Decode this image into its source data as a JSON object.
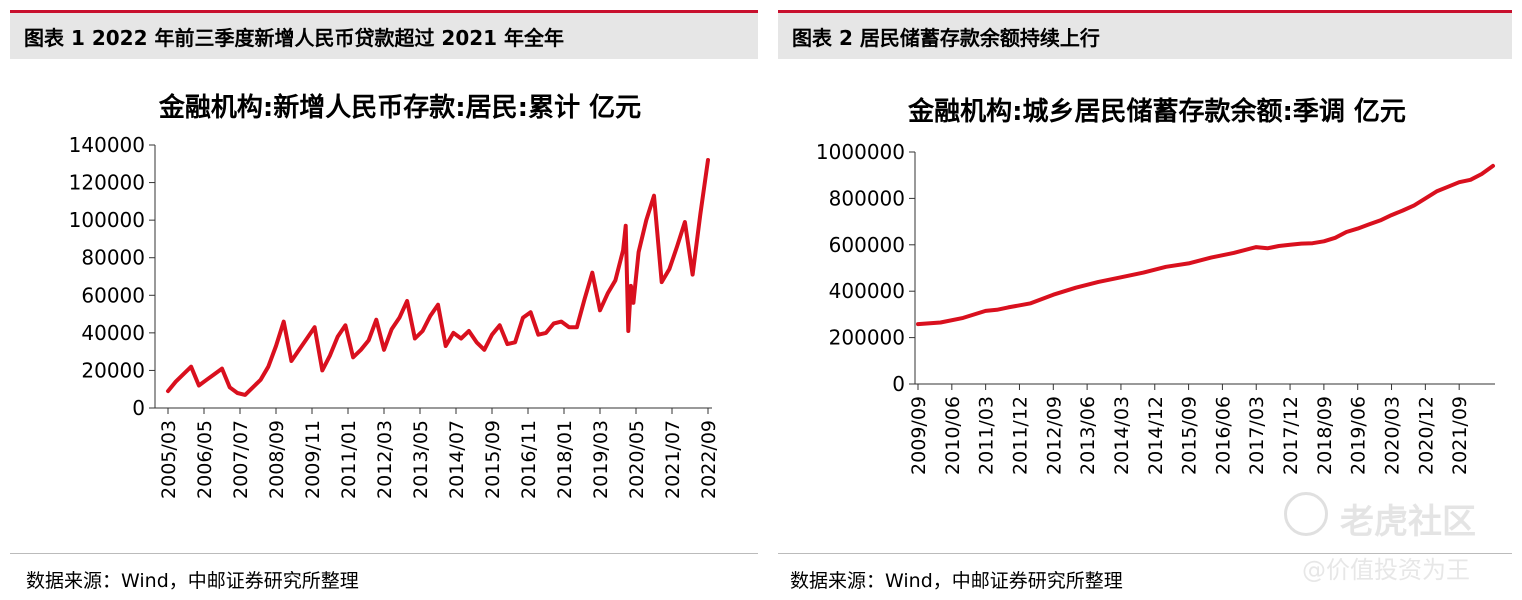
{
  "panels": [
    {
      "header": "图表 1 2022 年前三季度新增人民币贷款超过 2021 年全年",
      "source": "数据来源：Wind，中邮证券研究所整理"
    },
    {
      "header": "图表 2 居民储蓄存款余额持续上行",
      "source": "数据来源：Wind，中邮证券研究所整理"
    }
  ],
  "watermark": {
    "name": "老虎社区",
    "slogan": "@价值投资为王",
    "icon": "tiger-community-logo-icon"
  },
  "colors": {
    "series": "#d9101e",
    "accent": "#c8102e",
    "header_bg": "#e6e6e6"
  },
  "chart_data": [
    {
      "type": "line",
      "title": "金融机构:新增人民币存款:居民:累计 亿元",
      "ylim": [
        0,
        140000
      ],
      "yticks": [
        "0",
        "20000",
        "40000",
        "60000",
        "80000",
        "100000",
        "120000",
        "140000"
      ],
      "xticks": [
        "2005/03",
        "2006/05",
        "2007/07",
        "2008/09",
        "2009/11",
        "2011/01",
        "2012/03",
        "2013/05",
        "2014/07",
        "2015/09",
        "2016/11",
        "2018/01",
        "2019/03",
        "2020/05",
        "2021/07",
        "2022/09"
      ],
      "grid": false,
      "x": [
        "2005/03",
        "2005/06",
        "2005/09",
        "2005/12",
        "2006/03",
        "2006/06",
        "2006/09",
        "2006/12",
        "2007/03",
        "2007/06",
        "2007/09",
        "2007/12",
        "2008/03",
        "2008/06",
        "2008/09",
        "2008/12",
        "2009/03",
        "2009/06",
        "2009/09",
        "2009/12",
        "2010/03",
        "2010/06",
        "2010/09",
        "2010/12",
        "2011/03",
        "2011/06",
        "2011/09",
        "2011/12",
        "2012/03",
        "2012/06",
        "2012/09",
        "2012/12",
        "2013/03",
        "2013/06",
        "2013/09",
        "2013/12",
        "2014/03",
        "2014/06",
        "2014/09",
        "2014/12",
        "2015/03",
        "2015/06",
        "2015/09",
        "2015/12",
        "2016/03",
        "2016/06",
        "2016/09",
        "2016/12",
        "2017/03",
        "2017/06",
        "2017/09",
        "2017/12",
        "2018/03",
        "2018/06",
        "2018/09",
        "2018/12",
        "2019/03",
        "2019/06",
        "2019/09",
        "2019/12",
        "2020/01",
        "2020/02",
        "2020/03",
        "2020/04",
        "2020/06",
        "2020/09",
        "2020/12",
        "2021/03",
        "2021/06",
        "2021/09",
        "2021/12",
        "2022/03",
        "2022/06",
        "2022/09"
      ],
      "series": [
        {
          "values": [
            9000,
            14000,
            18000,
            22000,
            12000,
            15000,
            18000,
            21000,
            11000,
            8000,
            7000,
            11000,
            15000,
            22000,
            33000,
            46000,
            25000,
            31000,
            37000,
            43000,
            20000,
            28000,
            38000,
            44000,
            27000,
            31000,
            36000,
            47000,
            31000,
            42000,
            48000,
            57000,
            37000,
            41000,
            49000,
            55000,
            33000,
            40000,
            37000,
            41000,
            35000,
            31000,
            39000,
            44000,
            34000,
            35000,
            48000,
            51000,
            39000,
            40000,
            45000,
            46000,
            43000,
            43000,
            58000,
            72000,
            52000,
            61000,
            68000,
            84000,
            97000,
            41000,
            65000,
            56000,
            83000,
            100000,
            113000,
            67000,
            74000,
            86000,
            99000,
            71000,
            103000,
            132000
          ]
        }
      ]
    },
    {
      "type": "line",
      "title": "金融机构:城乡居民储蓄存款余额:季调 亿元",
      "ylim": [
        0,
        1000000
      ],
      "yticks": [
        "0",
        "200000",
        "400000",
        "600000",
        "800000",
        "1000000"
      ],
      "xticks": [
        "2009/09",
        "2010/06",
        "2011/03",
        "2011/12",
        "2012/09",
        "2013/06",
        "2014/03",
        "2014/12",
        "2015/09",
        "2016/06",
        "2017/03",
        "2017/12",
        "2018/09",
        "2019/06",
        "2020/03",
        "2020/12",
        "2021/09"
      ],
      "grid": false,
      "x": [
        "2009/09",
        "2010/03",
        "2010/09",
        "2011/03",
        "2011/06",
        "2011/09",
        "2012/03",
        "2012/09",
        "2013/03",
        "2013/09",
        "2014/03",
        "2014/09",
        "2015/03",
        "2015/09",
        "2016/03",
        "2016/09",
        "2017/03",
        "2017/06",
        "2017/09",
        "2017/12",
        "2018/03",
        "2018/06",
        "2018/09",
        "2018/12",
        "2019/03",
        "2019/06",
        "2019/09",
        "2019/12",
        "2020/03",
        "2020/06",
        "2020/09",
        "2020/12",
        "2021/03",
        "2021/06",
        "2021/09",
        "2021/12",
        "2022/03",
        "2022/06"
      ],
      "series": [
        {
          "values": [
            258000,
            265000,
            285000,
            315000,
            320000,
            330000,
            348000,
            385000,
            415000,
            440000,
            460000,
            480000,
            505000,
            520000,
            545000,
            565000,
            590000,
            585000,
            595000,
            600000,
            605000,
            607000,
            615000,
            630000,
            655000,
            670000,
            688000,
            705000,
            728000,
            748000,
            770000,
            800000,
            830000,
            850000,
            870000,
            880000,
            905000,
            940000
          ]
        }
      ]
    }
  ]
}
